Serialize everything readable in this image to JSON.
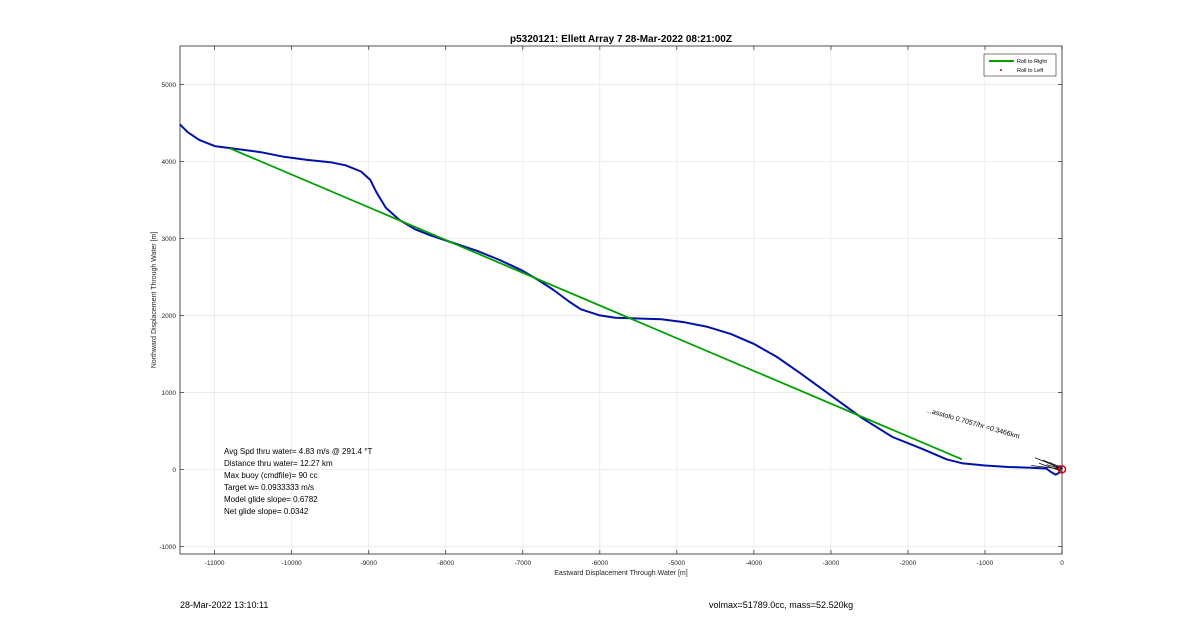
{
  "chart_data": {
    "type": "line",
    "title": "p5320121: Ellett Array 7 28-Mar-2022 08:21:00Z",
    "xlabel": "Eastward Displacement Through Water [m]",
    "ylabel": "Northward Displacement Through Water [m]",
    "xlim": [
      -11450,
      0
    ],
    "ylim": [
      -1100,
      5500
    ],
    "xticks": [
      -11000,
      -10000,
      -9000,
      -8000,
      -7000,
      -6000,
      -5000,
      -4000,
      -3000,
      -2000,
      -1000,
      0
    ],
    "yticks": [
      -1000,
      0,
      1000,
      2000,
      3000,
      4000,
      5000
    ],
    "grid": true,
    "legend_position": "top-right",
    "legend": [
      {
        "label": "Roll to Right",
        "color": "#00a000",
        "style": "line"
      },
      {
        "label": "Roll to Left",
        "color": "#cc0000",
        "style": "point"
      }
    ],
    "series": [
      {
        "color": "#0010a8",
        "points": [
          [
            -11450,
            4480
          ],
          [
            -11350,
            4380
          ],
          [
            -11200,
            4280
          ],
          [
            -11000,
            4200
          ],
          [
            -10700,
            4160
          ],
          [
            -10400,
            4120
          ],
          [
            -10100,
            4060
          ],
          [
            -9800,
            4020
          ],
          [
            -9500,
            3990
          ],
          [
            -9300,
            3950
          ],
          [
            -9100,
            3870
          ],
          [
            -8980,
            3760
          ],
          [
            -8900,
            3600
          ],
          [
            -8780,
            3400
          ],
          [
            -8600,
            3240
          ],
          [
            -8400,
            3120
          ],
          [
            -8200,
            3040
          ],
          [
            -7900,
            2940
          ],
          [
            -7600,
            2840
          ],
          [
            -7300,
            2720
          ],
          [
            -7000,
            2580
          ],
          [
            -6800,
            2460
          ],
          [
            -6600,
            2330
          ],
          [
            -6400,
            2180
          ],
          [
            -6250,
            2080
          ],
          [
            -6000,
            2000
          ],
          [
            -5800,
            1970
          ],
          [
            -5500,
            1960
          ],
          [
            -5200,
            1950
          ],
          [
            -4900,
            1910
          ],
          [
            -4600,
            1850
          ],
          [
            -4300,
            1760
          ],
          [
            -4000,
            1630
          ],
          [
            -3700,
            1460
          ],
          [
            -3400,
            1250
          ],
          [
            -3000,
            960
          ],
          [
            -2600,
            670
          ],
          [
            -2200,
            420
          ],
          [
            -1800,
            260
          ],
          [
            -1500,
            130
          ],
          [
            -1300,
            80
          ],
          [
            -1000,
            50
          ],
          [
            -700,
            30
          ],
          [
            -400,
            20
          ],
          [
            -200,
            10
          ],
          [
            -150,
            -30
          ],
          [
            -80,
            -70
          ],
          [
            -30,
            -40
          ],
          [
            -60,
            30
          ],
          [
            -20,
            40
          ],
          [
            0,
            0
          ]
        ]
      },
      {
        "name": "Roll to Right",
        "color": "#00a000",
        "points": [
          [
            -10800,
            4170
          ],
          [
            -1300,
            130
          ]
        ]
      }
    ],
    "start_marker": {
      "x": 0,
      "y": 0,
      "color": "#e00000"
    },
    "annotations": [
      {
        "text": "Avg Spd thru water=  4.83 m/s @ 291.4 °T"
      },
      {
        "text": "Distance thru water= 12.27 km"
      },
      {
        "text": "Max buoy (cmdfile)= 90 cc"
      },
      {
        "text": "Target w= 0.0933333 m/s"
      },
      {
        "text": "Model glide slope= 0.6782"
      },
      {
        "text": "Net glide slope= 0.0342"
      }
    ],
    "rotated_annotation": {
      "text": "...asstofo 0.7057/hr =0.3466km"
    }
  },
  "footer": {
    "timestamp": "28-Mar-2022 13:10:11",
    "vol_mass": "volmax=51789.0cc, mass=52.520kg"
  }
}
